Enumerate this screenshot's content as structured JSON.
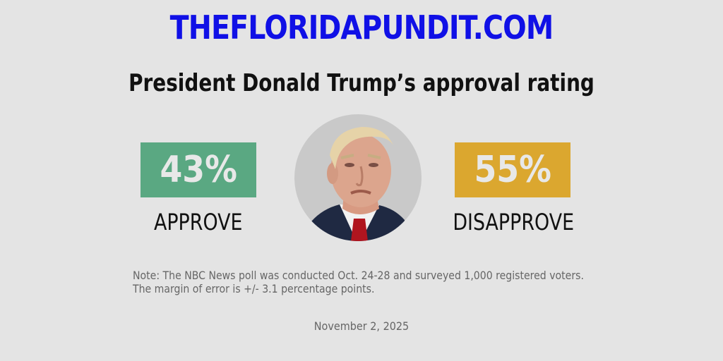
{
  "site": {
    "title": "THEFLORIDAPUNDIT.COM"
  },
  "headline": "President Donald Trump’s approval rating",
  "stats": {
    "approve": {
      "value": "43%",
      "label": "APPROVE",
      "color": "#5aa882"
    },
    "disapprove": {
      "value": "55%",
      "label": "DISAPPROVE",
      "color": "#dba72f"
    }
  },
  "portrait": {
    "icon": "portrait-icon"
  },
  "note": {
    "line1": "Note: The NBC News poll was conducted Oct. 24-28 and surveyed 1,000 registered voters.",
    "line2": "The margin of error is +/- 3.1 percentage points."
  },
  "date": "November 2, 2025"
}
